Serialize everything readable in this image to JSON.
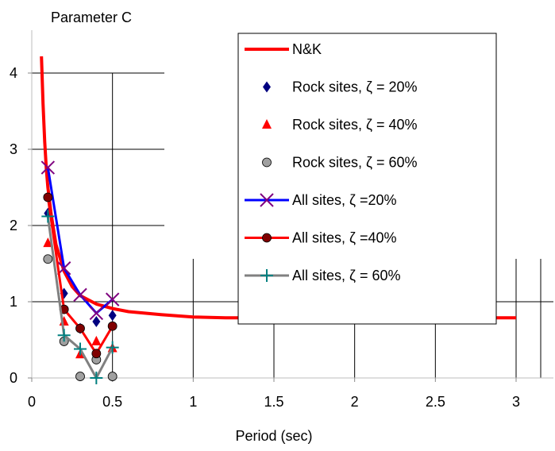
{
  "chart_data": {
    "type": "line",
    "ylabel": "Parameter C",
    "xlabel": "Period (sec)",
    "xlim": [
      0,
      3.2
    ],
    "ylim": [
      0,
      4.5
    ],
    "xticks": [
      0,
      0.5,
      1,
      1.5,
      2,
      2.5,
      3
    ],
    "xtick_labels": [
      "0",
      "0.5",
      "1",
      "1.5",
      "2",
      "2.5",
      "3"
    ],
    "yticks": [
      0,
      1,
      2,
      3,
      4
    ],
    "ytick_labels": [
      "0",
      "1",
      "2",
      "3",
      "4"
    ],
    "grid": true,
    "legend_position": "top-right",
    "series": [
      {
        "name": "N&K",
        "kind": "line",
        "color": "#ff0000",
        "x": [
          0.06,
          0.07,
          0.08,
          0.09,
          0.1,
          0.12,
          0.15,
          0.2,
          0.25,
          0.3,
          0.4,
          0.5,
          0.6,
          0.8,
          1.0,
          1.2,
          1.5,
          2.0,
          2.5,
          3.0
        ],
        "y": [
          4.22,
          3.6,
          3.1,
          2.75,
          2.5,
          2.15,
          1.75,
          1.4,
          1.2,
          1.08,
          0.97,
          0.91,
          0.87,
          0.83,
          0.8,
          0.79,
          0.79,
          0.79,
          0.79,
          0.79
        ]
      },
      {
        "name": "Rock sites, ζ = 20%",
        "kind": "marker",
        "marker": "diamond",
        "color": "#000080",
        "x": [
          0.1,
          0.2,
          0.3,
          0.4,
          0.5
        ],
        "y": [
          2.16,
          1.11,
          0.65,
          0.74,
          0.82
        ]
      },
      {
        "name": "Rock sites, ζ = 40%",
        "kind": "marker",
        "marker": "triangle",
        "color": "#ff0000",
        "x": [
          0.1,
          0.2,
          0.3,
          0.4,
          0.5
        ],
        "y": [
          1.77,
          0.74,
          0.31,
          0.48,
          0.39
        ]
      },
      {
        "name": "Rock sites, ζ = 60%",
        "kind": "marker",
        "marker": "circle",
        "color": "#a0a0a0",
        "x": [
          0.1,
          0.2,
          0.3,
          0.4,
          0.5
        ],
        "y": [
          1.56,
          0.48,
          0.02,
          0.24,
          0.02
        ]
      },
      {
        "name": "All sites, ζ =20%",
        "kind": "line-marker",
        "marker": "x",
        "color": "#0000ff",
        "marker_color": "#800080",
        "x": [
          0.1,
          0.2,
          0.3,
          0.4,
          0.5
        ],
        "y": [
          2.76,
          1.44,
          1.09,
          0.85,
          1.03
        ]
      },
      {
        "name": "All sites, ζ =40%",
        "kind": "line-marker",
        "marker": "circle",
        "color": "#ff0000",
        "marker_color": "#800000",
        "x": [
          0.1,
          0.2,
          0.3,
          0.4,
          0.5
        ],
        "y": [
          2.37,
          0.9,
          0.65,
          0.32,
          0.68
        ]
      },
      {
        "name": "All sites, ζ = 60%",
        "kind": "line-marker",
        "marker": "plus",
        "color": "#808080",
        "marker_color": "#008080",
        "x": [
          0.1,
          0.2,
          0.3,
          0.4,
          0.5
        ],
        "y": [
          2.12,
          0.56,
          0.38,
          0.0,
          0.4
        ]
      }
    ]
  }
}
